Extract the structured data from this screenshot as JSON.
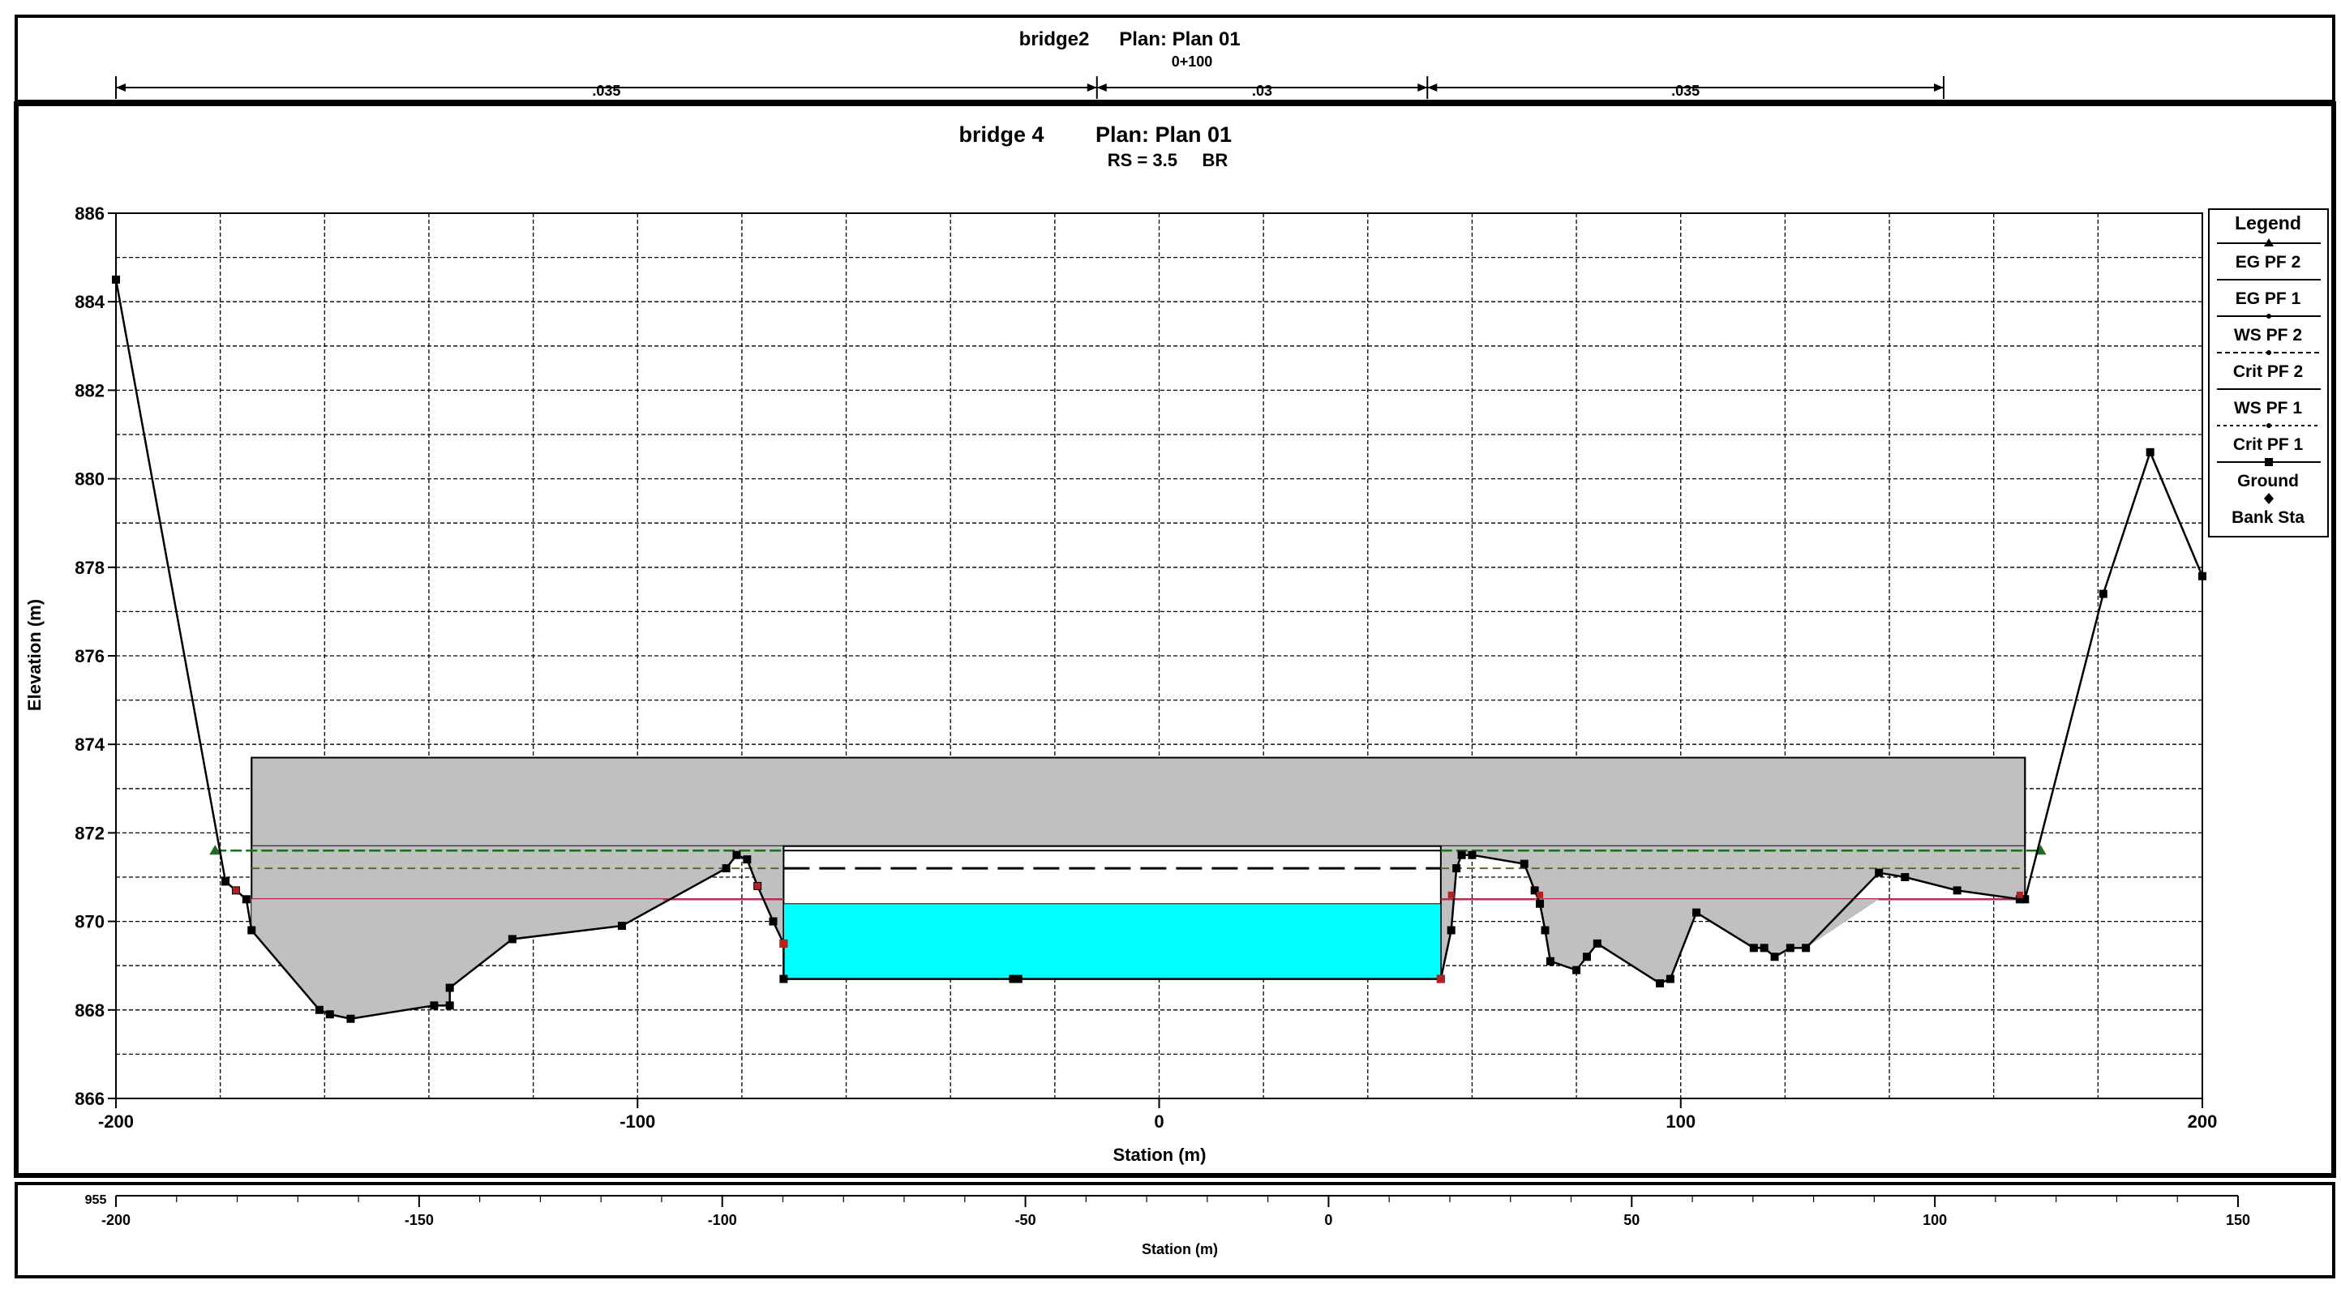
{
  "top_panel": {
    "title": "bridge2",
    "plan": "Plan: Plan 01",
    "subtitle": "0+100",
    "roughness": [
      ".035",
      ".03",
      ".035"
    ],
    "roughness_bounds_station": [
      -200,
      -10,
      54,
      154
    ]
  },
  "bottom_panel": {
    "elevation_label": "955",
    "xlabel": "Station (m)",
    "xticks": [
      "-200",
      "-150",
      "-100",
      "-50",
      "0",
      "50",
      "100",
      "150"
    ],
    "xlim": [
      -200,
      150
    ]
  },
  "chart_data": {
    "type": "line",
    "title": "bridge 4",
    "plan": "Plan: Plan 01",
    "subtitle": "RS = 3.5     BR",
    "xlabel": "Station (m)",
    "ylabel": "Elevation (m)",
    "xlim": [
      -200,
      200
    ],
    "ylim": [
      866,
      886
    ],
    "xticks": [
      -200,
      -100,
      0,
      100,
      200
    ],
    "yticks": [
      866,
      868,
      870,
      872,
      874,
      876,
      878,
      880,
      882,
      884,
      886
    ],
    "grid": true,
    "legend_position": "right",
    "legend": {
      "title": "Legend",
      "entries": [
        "EG PF 2",
        "EG PF 1",
        "WS PF 2",
        "Crit PF 2",
        "WS PF 1",
        "Crit PF 1",
        "Ground",
        "Bank Sta"
      ]
    },
    "ground": {
      "x": [
        -200,
        -179,
        -177,
        -175,
        -174,
        -161,
        -159,
        -155,
        -139,
        -136,
        -136,
        -124,
        -103,
        -83,
        -81,
        -79,
        -77,
        -74,
        -72,
        -72,
        -28,
        -27,
        54,
        56,
        57,
        58,
        60,
        70,
        72,
        73,
        74,
        75,
        80,
        82,
        84,
        96,
        98,
        103,
        114,
        116,
        118,
        121,
        124,
        138,
        143,
        153,
        165,
        166,
        181,
        190,
        200
      ],
      "y": [
        884.5,
        870.9,
        870.7,
        870.5,
        869.8,
        868.0,
        867.9,
        867.8,
        868.1,
        868.1,
        868.5,
        869.6,
        869.9,
        871.2,
        871.5,
        871.4,
        870.8,
        870.0,
        869.5,
        868.7,
        868.7,
        868.7,
        868.7,
        869.8,
        871.2,
        871.5,
        871.5,
        871.3,
        870.7,
        870.4,
        869.8,
        869.1,
        868.9,
        869.2,
        869.5,
        868.6,
        868.7,
        870.2,
        869.4,
        869.4,
        869.2,
        869.4,
        869.4,
        871.1,
        871.0,
        870.7,
        870.5,
        870.5,
        877.4,
        880.6,
        877.8
      ]
    },
    "bank_stations": [
      -72,
      54
    ],
    "bridge_deck": {
      "x": [
        -174,
        166
      ],
      "high_chord": 873.7,
      "low_chord": 871.7
    },
    "bridge_opening": {
      "x": [
        -72,
        54
      ]
    },
    "series": [
      {
        "name": "EG PF 2",
        "value": 871.6,
        "x": [
          -181,
          -174,
          -72,
          54,
          58,
          166,
          169
        ],
        "color": "#1f6b1f"
      },
      {
        "name": "EG PF 1",
        "value": 871.2,
        "x": [
          -174,
          -72,
          54,
          166
        ],
        "color": "#556b2f"
      },
      {
        "name": "WS PF 2",
        "value": 870.5,
        "x": [
          -174,
          -95,
          54,
          165
        ],
        "color": "#b03050"
      },
      {
        "name": "Crit PF 2",
        "value": 871.2,
        "x": [
          -72,
          54
        ],
        "color": "#000000"
      },
      {
        "name": "WS PF 1",
        "value": 870.4,
        "x": [
          -72,
          54
        ],
        "color": "#00e5ee"
      },
      {
        "name": "Crit PF 1",
        "value": 870.8,
        "x": [
          -72,
          54
        ],
        "color": "#000000"
      }
    ],
    "colors": {
      "bridge_fill": "#c0c0c0",
      "water_fill": "#00ffff",
      "ground_line": "#000000",
      "bank_marker": "#b22222",
      "grid": "#000000"
    }
  }
}
